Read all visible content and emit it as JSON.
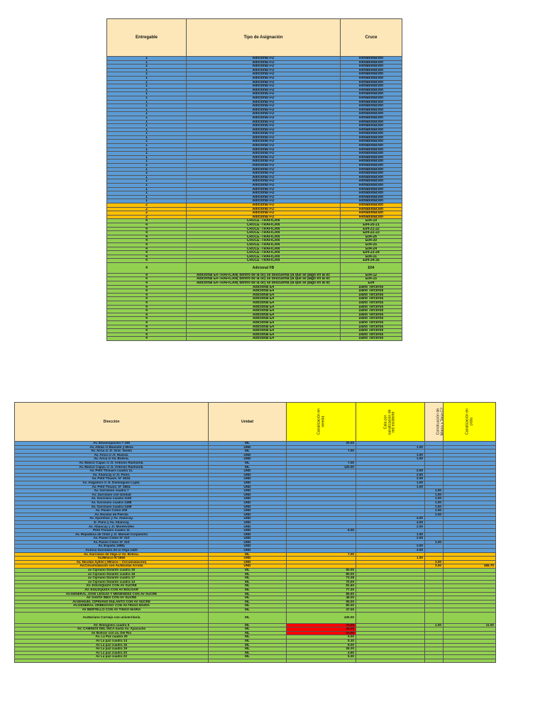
{
  "top_table": {
    "headers": [
      "Entregable",
      "Tipo de Asignación",
      "Cruce"
    ],
    "rows": [
      {
        "c": "blue",
        "e": "1",
        "t": "Adicional FO",
        "x": "Rehabilitación"
      },
      {
        "c": "blue",
        "e": "1",
        "t": "Adicional FO",
        "x": "Rehabilitación"
      },
      {
        "c": "blue",
        "e": "1",
        "t": "Adicional FO",
        "x": "Rehabilitación"
      },
      {
        "c": "blue",
        "e": "1",
        "t": "Adicional FO",
        "x": "Rehabilitación"
      },
      {
        "c": "blue",
        "e": "1",
        "t": "Adicional FO",
        "x": "Rehabilitación"
      },
      {
        "c": "blue",
        "e": "1",
        "t": "Adicional FO",
        "x": "Rehabilitación"
      },
      {
        "c": "blue",
        "e": "1",
        "t": "Adicional FO",
        "x": "Rehabilitación"
      },
      {
        "c": "blue",
        "e": "1",
        "t": "Adicional FO",
        "x": "Rehabilitación"
      },
      {
        "c": "blue",
        "e": "1",
        "t": "Adicional FO",
        "x": "Rehabilitación"
      },
      {
        "c": "blue",
        "e": "1",
        "t": "Adicional FO",
        "x": "Rehabilitación"
      },
      {
        "c": "blue",
        "e": "1",
        "t": "Adicional FO",
        "x": "Rehabilitación"
      },
      {
        "c": "blue",
        "e": "1",
        "t": "Adicional FO",
        "x": "Rehabilitación"
      },
      {
        "c": "blue",
        "e": "1",
        "t": "Adicional FO",
        "x": "Rehabilitación"
      },
      {
        "c": "blue",
        "e": "1",
        "t": "Adicional FO",
        "x": "Rehabilitación"
      },
      {
        "c": "blue",
        "e": "1",
        "t": "Adicional FO",
        "x": "Rehabilitación"
      },
      {
        "c": "blue",
        "e": "1",
        "t": "Adicional FO",
        "x": "Rehabilitación"
      },
      {
        "c": "blue",
        "e": "1",
        "t": "Adicional FO",
        "x": "Rehabilitación"
      },
      {
        "c": "blue",
        "e": "1",
        "t": "Adicional FO",
        "x": "Rehabilitación"
      },
      {
        "c": "blue",
        "e": "1",
        "t": "Adicional FO",
        "x": "Rehabilitación"
      },
      {
        "c": "blue",
        "e": "1",
        "t": "Adicional FO",
        "x": "Rehabilitación"
      },
      {
        "c": "blue",
        "e": "1",
        "t": "Adicional FO",
        "x": "Rehabilitación"
      },
      {
        "c": "blue",
        "e": "1",
        "t": "Adicional FO",
        "x": "Rehabilitación"
      },
      {
        "c": "blue",
        "e": "1",
        "t": "Adicional FO",
        "x": "Rehabilitación"
      },
      {
        "c": "blue",
        "e": "1",
        "t": "Adicional FO",
        "x": "Rehabilitación"
      },
      {
        "c": "blue",
        "e": "1",
        "t": "Adicional FO",
        "x": "Rehabilitación"
      },
      {
        "c": "blue",
        "e": "1",
        "t": "Adicional FO",
        "x": "Rehabilitación"
      },
      {
        "c": "blue",
        "e": "1",
        "t": "Adicional FO",
        "x": "Rehabilitación"
      },
      {
        "c": "blue",
        "e": "1",
        "t": "Adicional FO",
        "x": "Rehabilitación"
      },
      {
        "c": "blue",
        "e": "1",
        "t": "Adicional FO",
        "x": "Rehabilitación"
      },
      {
        "c": "blue",
        "e": "1",
        "t": "Adicional FO",
        "x": "Rehabilitación"
      },
      {
        "c": "blue",
        "e": "1",
        "t": "Adicional FO",
        "x": "Rehabilitación"
      },
      {
        "c": "blue",
        "e": "1",
        "t": "Adicional FO",
        "x": "Rehabilitación"
      },
      {
        "c": "blue",
        "e": "1",
        "t": "Adicional FO",
        "x": "Rehabilitación"
      },
      {
        "c": "blue",
        "e": "1",
        "t": "Adicional FO",
        "x": "Rehabilitación"
      },
      {
        "c": "blue",
        "e": "1",
        "t": "Adicional FO",
        "x": "Rehabilitación"
      },
      {
        "c": "blue",
        "e": "1",
        "t": "Adicional FO",
        "x": "Rehabilitación"
      },
      {
        "c": "blue",
        "e": "1",
        "t": "Adicional FO",
        "x": "Rehabilitación"
      },
      {
        "c": "orange",
        "e": "2",
        "t": "Adicional FO",
        "x": "Rehabilitación"
      },
      {
        "c": "orange",
        "e": "2",
        "t": "Adicional FO",
        "x": "Rehabilitación"
      },
      {
        "c": "orange",
        "e": "2",
        "t": "Adicional FO",
        "x": "Rehabilitación"
      },
      {
        "c": "orange",
        "e": "2",
        "t": "Adicional FO",
        "x": "Rehabilitación"
      },
      {
        "c": "green",
        "e": "4",
        "t": "CRUCE -TRAFICAN",
        "x": "E04-19"
      },
      {
        "c": "green",
        "e": "4",
        "t": "CRUCE -TRAFICAN",
        "x": "E04-20-21"
      },
      {
        "c": "green",
        "e": "4",
        "t": "CRUCE -TRAFICAN",
        "x": "E04-21-22"
      },
      {
        "c": "green",
        "e": "4",
        "t": "CRUCE -TRAFICAN",
        "x": "E04-22-23"
      },
      {
        "c": "green",
        "e": "4",
        "t": "CRUCE -TRAFICAN",
        "x": "E04-26"
      },
      {
        "c": "green",
        "e": "4",
        "t": "CRUCE -TRAFICAN",
        "x": "E04-30"
      },
      {
        "c": "green",
        "e": "4",
        "t": "CRUCE -TRAFICAN",
        "x": "E04-25"
      },
      {
        "c": "green",
        "e": "4",
        "t": "CRUCE -TRAFICAN",
        "x": "E04-24"
      },
      {
        "c": "green",
        "e": "4",
        "t": "CRUCE -TRAFICAN",
        "x": "E04-23-24"
      },
      {
        "c": "green",
        "e": "4",
        "t": "CRUCE -TRAFICAN",
        "x": "E04-31"
      },
      {
        "c": "green",
        "e": "4",
        "t": "CRUCE -TRAFICAN",
        "x": "E04-34-35"
      },
      {
        "c": "green",
        "e": "4",
        "t": "Adicional FB",
        "x": "E04",
        "tall": true
      },
      {
        "c": "green",
        "e": "4",
        "t": "Adicional E4-TRAFICAN( dentro de la oc( se descuenta ya que se pago en la oc",
        "x": "E04-12"
      },
      {
        "c": "green",
        "e": "4",
        "t": "Adicional E4-TRAFICAN( dentro de la oc( se descuenta ya que se pago en la oc",
        "x": "E04-15"
      },
      {
        "c": "green",
        "e": "4",
        "t": "Adicional E4-TRAFICAN( dentro de la oc( se descuenta ya que se pago en la oc",
        "x": "E04"
      },
      {
        "c": "green",
        "e": "4",
        "t": "Adicional E4",
        "x": "Daño Terceros"
      },
      {
        "c": "green",
        "e": "4",
        "t": "Adicional E4",
        "x": "Daño Terceros"
      },
      {
        "c": "green",
        "e": "4",
        "t": "Adicional E4",
        "x": "Daño Terceros"
      },
      {
        "c": "green",
        "e": "4",
        "t": "Adicional E4",
        "x": "Daño Terceros"
      },
      {
        "c": "green",
        "e": "4",
        "t": "Adicional E4",
        "x": "Daño Terceros"
      },
      {
        "c": "green",
        "e": "4",
        "t": "Adicional E4",
        "x": "Daño Terceros"
      },
      {
        "c": "green",
        "e": "4",
        "t": "Adicional E4",
        "x": "Daño Terceros"
      },
      {
        "c": "green",
        "e": "4",
        "t": "Adicional E4",
        "x": "Daño Terceros"
      },
      {
        "c": "green",
        "e": "4",
        "t": "Adicional E4",
        "x": "Daño Terceros"
      },
      {
        "c": "green",
        "e": "4",
        "t": "Adicional E4",
        "x": "Daño Terceros"
      },
      {
        "c": "green",
        "e": "4",
        "t": "Adicional E4",
        "x": "Daño Terceros"
      },
      {
        "c": "green",
        "e": "4",
        "t": "Adicional E4",
        "x": "Daño Terceros"
      },
      {
        "c": "green",
        "e": "4",
        "t": "Adicional E4",
        "x": "Daño Terceros"
      },
      {
        "c": "green",
        "e": "4",
        "t": "Adicional E4",
        "x": "Daño Terceros"
      }
    ]
  },
  "bottom_table": {
    "headers": [
      "Dirección",
      "Unidad",
      "Canalización en vereda",
      "Cala por canalización de red existente",
      "Construcción de Marco y Tapa C2",
      "Canalización en pista"
    ],
    "rows": [
      {
        "c": "blue",
        "d": "Av. Emancipación # 159",
        "u": "ML",
        "a": "20.00",
        "b": "",
        "m": "",
        "p": ""
      },
      {
        "c": "blue",
        "d": "Av. Abtao c/ Bausate y Meza",
        "u": "UND",
        "a": "",
        "b": "1.00",
        "m": "",
        "p": ""
      },
      {
        "c": "blue",
        "d": "Av. Arica c/ Jr. Gral. Varela",
        "u": "ML",
        "a": "7.00",
        "b": "",
        "m": "",
        "p": ""
      },
      {
        "c": "blue",
        "d": "Av. Arica c/ Jr. Huaraz.",
        "u": "UND",
        "a": "",
        "b": "1.00",
        "m": "",
        "p": ""
      },
      {
        "c": "blue",
        "d": "Av. Arica c/ Av. Bolivia.",
        "u": "UND",
        "a": "",
        "b": "1.00",
        "m": "",
        "p": ""
      },
      {
        "c": "blue",
        "d": "Av. Manco Cápac c/ Jr. Antonio Raimondi.",
        "u": "ML",
        "a": "7.00",
        "b": "",
        "m": "",
        "p": ""
      },
      {
        "c": "blue",
        "d": "Av. Manco Cápac c/ Jr. Antonio Raimondi.",
        "u": "ML",
        "a": "120.00",
        "b": "",
        "m": "",
        "p": ""
      },
      {
        "c": "blue",
        "d": "Av. Petit Thouars cuadra 11.",
        "u": "UND",
        "a": "",
        "b": "2.00",
        "m": "",
        "p": ""
      },
      {
        "c": "blue",
        "d": "Av. Abancay c/ Jr. Puno.",
        "u": "UND",
        "a": "",
        "b": "2.00",
        "m": "",
        "p": ""
      },
      {
        "c": "blue",
        "d": "Av. Petit Thuars. N° 4022.",
        "u": "UND",
        "a": "",
        "b": "2.00",
        "m": "",
        "p": ""
      },
      {
        "c": "blue",
        "d": "Av. Angamos c/ Jr. Domínguez Luján.",
        "u": "UND",
        "a": "",
        "b": "1.00",
        "m": "",
        "p": ""
      },
      {
        "c": "blue",
        "d": "Av. Petit Thuars. N° 2863.",
        "u": "UND",
        "a": "",
        "b": "1.00",
        "m": "",
        "p": ""
      },
      {
        "c": "blue",
        "d": "Av. Garcilaso cuadra 7",
        "u": "UND",
        "a": "",
        "b": "",
        "m": "1.00",
        "p": ""
      },
      {
        "c": "blue",
        "d": "Av. Garcilaso con Unidad",
        "u": "UND",
        "a": "",
        "b": "",
        "m": "1.00",
        "p": ""
      },
      {
        "c": "blue",
        "d": "Av. Garcilaso cuadra 1192",
        "u": "UND",
        "a": "",
        "b": "",
        "m": "1.00",
        "p": ""
      },
      {
        "c": "blue",
        "d": "Av. Garcilaso cuadra 1488",
        "u": "UND",
        "a": "",
        "b": "",
        "m": "1.00",
        "p": ""
      },
      {
        "c": "blue",
        "d": "Av. Garcilaso cuadra 1498",
        "u": "UND",
        "a": "",
        "b": "",
        "m": "1.00",
        "p": ""
      },
      {
        "c": "blue",
        "d": "Av. Paseo Colon 200",
        "u": "UND",
        "a": "",
        "b": "",
        "m": "1.00",
        "p": ""
      },
      {
        "c": "blue",
        "d": "Av. Nicolás de Pierola",
        "u": "UND",
        "a": "",
        "b": "",
        "m": "1.00",
        "p": ""
      },
      {
        "c": "blue",
        "d": "Av. Apurimac y Av. Abancay.",
        "u": "UND",
        "a": "",
        "b": "4.00",
        "m": "",
        "p": ""
      },
      {
        "c": "blue",
        "d": "Jr. Puno y Av. Abancay.",
        "u": "UND",
        "a": "",
        "b": "4.00",
        "m": "",
        "p": ""
      },
      {
        "c": "blue",
        "d": "Av. Abancay y Jr. Montevideo",
        "u": "UND",
        "a": "",
        "b": "2.00",
        "m": "",
        "p": ""
      },
      {
        "c": "blue",
        "d": "Petit Thouars cuadra 11",
        "u": "UND",
        "a": "6.00",
        "b": "",
        "m": "",
        "p": ""
      },
      {
        "c": "blue",
        "d": "Av. República de Chile y Jr. Manuel Corpancho",
        "u": "UND",
        "a": "",
        "b": "1.00",
        "m": "",
        "p": ""
      },
      {
        "c": "blue",
        "d": "Av. Paseo Colon N° 210",
        "u": "UND",
        "a": "",
        "b": "2.00",
        "m": "",
        "p": ""
      },
      {
        "c": "blue",
        "d": "Av. Paseo Colon N° 210",
        "u": "UND",
        "a": "",
        "b": "",
        "m": "1.00",
        "p": ""
      },
      {
        "c": "blue",
        "d": "Av. España 1085)",
        "u": "UND",
        "a": "",
        "b": "3.00",
        "m": "",
        "p": ""
      },
      {
        "c": "blue",
        "d": "Av.Inca Garcilaso de la Vega 1420",
        "u": "UND",
        "a": "",
        "b": "3.00",
        "m": "",
        "p": ""
      },
      {
        "c": "orange",
        "d": "Av. Garcilaso de Vega c/ Av. Bolivia.",
        "u": "ML",
        "a": "7.00",
        "b": "",
        "m": "",
        "p": ""
      },
      {
        "c": "orange",
        "d": "Av.Mexico N°2660",
        "u": "UND",
        "a": "",
        "b": "1.00",
        "m": "",
        "p": ""
      },
      {
        "c": "orange",
        "d": "Av. Nicolás Ayllon ( México – Circunvalación)",
        "u": "UND",
        "a": "",
        "b": "",
        "m": "3.00",
        "p": ""
      },
      {
        "c": "orange",
        "d": "Av.Circunvalacion con Av.Nicolas Arriola",
        "u": "UND",
        "a": "",
        "b": "",
        "m": "3.00",
        "p": "465.70"
      },
      {
        "c": "green",
        "d": "av Cipriano Dulanto cuadra 19",
        "u": "ML",
        "a": "50.00",
        "b": "",
        "m": "",
        "p": ""
      },
      {
        "c": "green",
        "d": "av Cipriano Dulanto cuadra 18",
        "u": "ML",
        "a": "80.00",
        "b": "",
        "m": "",
        "p": ""
      },
      {
        "c": "green",
        "d": "av Cipriano Dulanto cuadra 17",
        "u": "ML",
        "a": "73.38",
        "b": "",
        "m": "",
        "p": ""
      },
      {
        "c": "green",
        "d": "av Cipriano Dulanto cuadra 14",
        "u": "ML",
        "a": "70.00",
        "b": "",
        "m": "",
        "p": ""
      },
      {
        "c": "green",
        "d": "AV. EGUSQUIZA CON AV SUCRE",
        "u": "ML",
        "a": "81.60",
        "b": "",
        "m": "",
        "p": ""
      },
      {
        "c": "green",
        "d": "AV. EGUSQUIZA CON AV BOLIVAR",
        "u": "ML",
        "a": "77.30",
        "b": "",
        "m": "",
        "p": ""
      },
      {
        "c": "green",
        "d": "AV.GENERAL JOSE LEGUIA Y MENENDEZ CON AV SUCRE",
        "u": "ML",
        "a": "85.60",
        "b": "",
        "m": "",
        "p": ""
      },
      {
        "c": "green",
        "d": "AV SANTA INES CON AV SUCRE",
        "u": "ML",
        "a": "48.00",
        "b": "",
        "m": "",
        "p": ""
      },
      {
        "c": "green",
        "d": "AV.MANUEL CIPRIANO DULANTO CON AV SUCRE",
        "u": "ML",
        "a": "95.00",
        "b": "",
        "m": "",
        "p": ""
      },
      {
        "c": "green",
        "d": "AV.GENERAL ORBEGOSO CON AV.TINGO MARIA",
        "u": "ML",
        "a": "80.00",
        "b": "",
        "m": "",
        "p": ""
      },
      {
        "c": "green",
        "d": "AV BERTELLO CON AV TINGO MARIA",
        "u": "ML",
        "a": "37.00",
        "b": "",
        "m": "",
        "p": ""
      },
      {
        "c": "green",
        "d": "Av.Mariano Cornejo con universitaria",
        "u": "ML",
        "a": "430.00",
        "b": "",
        "m": "",
        "p": "",
        "tall": true
      },
      {
        "c": "green",
        "d": "AV. Bolognesi cuadra 5",
        "u": "ML",
        "a": "75.00",
        "b": "",
        "m": "1.00",
        "p": "11.00",
        "red": true
      },
      {
        "c": "green",
        "d": "AV. CAMINOS DEL INCA hasta Av. Ayacucho",
        "u": "ML",
        "a": "40.00",
        "b": "",
        "m": "",
        "p": "",
        "red": true
      },
      {
        "c": "green",
        "d": "Av Bolivar con av. Del Rio",
        "u": "ML",
        "a": "64.00",
        "b": "",
        "m": "",
        "p": "",
        "red": true
      },
      {
        "c": "green",
        "d": "Av. La Paz cuadra 29",
        "u": "ML",
        "a": "9.00",
        "b": "",
        "m": "",
        "p": ""
      },
      {
        "c": "green",
        "d": "Av La paz cuadra 14",
        "u": "ML",
        "a": "5.10",
        "b": "",
        "m": "",
        "p": ""
      },
      {
        "c": "green",
        "d": "Av La paz cuadra 16",
        "u": "ML",
        "a": "8.00",
        "b": "",
        "m": "",
        "p": ""
      },
      {
        "c": "green",
        "d": "Av La paz cuadra 19",
        "u": "ML",
        "a": "26.20",
        "b": "",
        "m": "",
        "p": ""
      },
      {
        "c": "green",
        "d": "Av La paz cuadra 20",
        "u": "ML",
        "a": "4.60",
        "b": "",
        "m": "",
        "p": ""
      },
      {
        "c": "green",
        "d": "Av La paz cuadra 22",
        "u": "ML",
        "a": "5.20",
        "b": "",
        "m": "",
        "p": ""
      },
      {
        "c": "green",
        "d": "",
        "u": "",
        "a": "",
        "b": "",
        "m": "",
        "p": ""
      }
    ]
  },
  "colors": {
    "blue": "#5b9bd5",
    "orange": "#ffc000",
    "green": "#92d050",
    "header": "#fde7b8",
    "yellow_header": "#ffff00",
    "red": "#ff0000"
  }
}
